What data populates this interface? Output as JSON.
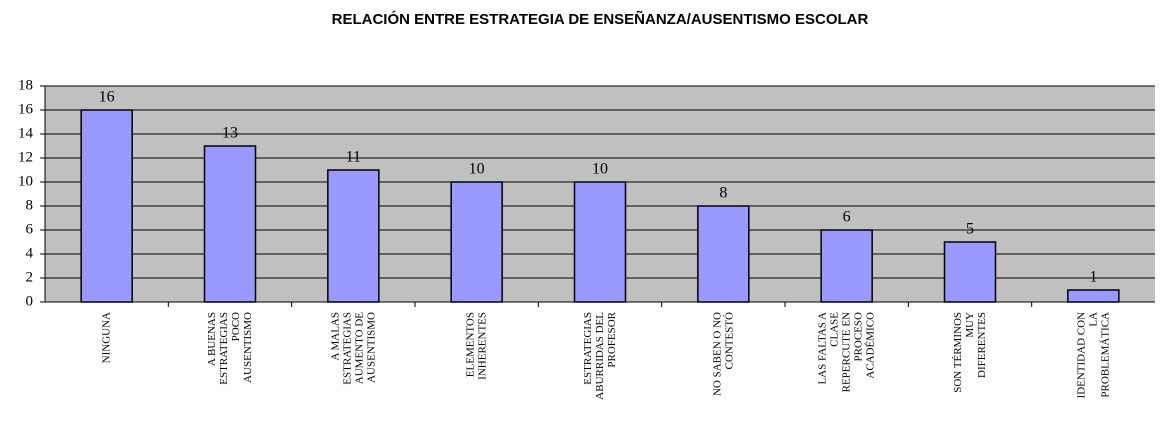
{
  "chart_data": {
    "type": "bar",
    "title": "RELACIÓN ENTRE ESTRATEGIA DE ENSEÑANZA/AUSENTISMO ESCOLAR",
    "categories": [
      "NINGUNA",
      "A BUENAS ESTRATEGIAS POCO AUSENTISMO",
      "A MALAS ESTRATEGIAS AUMENTO DE AUSENTISMO",
      "ELEMENTOS INHERENTES",
      "ESTRATEGIAS ABURRIDAS DEL PROFESOR",
      "NO SABEN O NO CONTESTÓ",
      "LAS FALTAS A CLASE REPERCUTE EN PROCESO ACADÉMICO",
      "SON TÉRMINOS MUY DIFERENTES",
      "IDENTIDAD CON LA PROBLEMÁTICA"
    ],
    "values": [
      16,
      13,
      11,
      10,
      10,
      8,
      6,
      5,
      1
    ],
    "color": "#9999ff",
    "ylim": [
      0,
      18
    ],
    "yticks": [
      0,
      2,
      4,
      6,
      8,
      10,
      12,
      14,
      16,
      18
    ],
    "grid": true
  }
}
